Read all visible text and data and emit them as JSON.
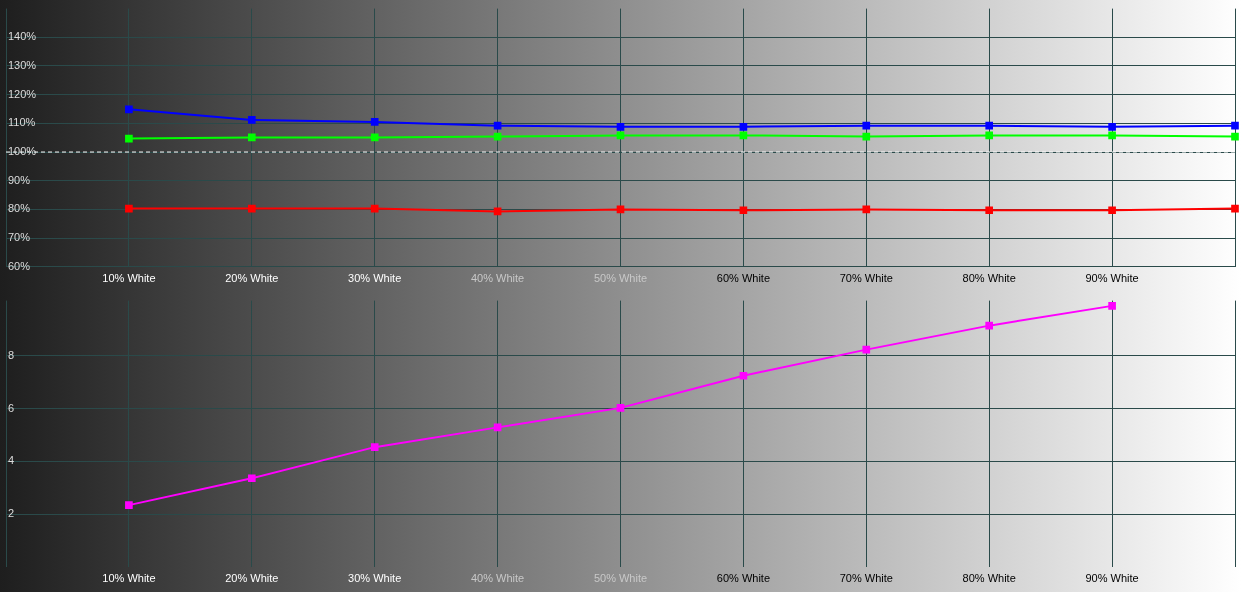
{
  "chart_data": [
    {
      "type": "line",
      "categories": [
        null,
        "10% White",
        "20% White",
        "30% White",
        "40% White",
        "50% White",
        "60% White",
        "70% White",
        "80% White",
        "90% White",
        null
      ],
      "ylim": [
        60,
        150
      ],
      "yticks": [
        {
          "value": 60,
          "label": "60%"
        },
        {
          "value": 70,
          "label": "70%"
        },
        {
          "value": 80,
          "label": "80%"
        },
        {
          "value": 90,
          "label": "90%"
        },
        {
          "value": 100,
          "label": "100%"
        },
        {
          "value": 110,
          "label": "110%"
        },
        {
          "value": 120,
          "label": "120%"
        },
        {
          "value": 130,
          "label": "130%"
        },
        {
          "value": 140,
          "label": "140%"
        }
      ],
      "grid": true,
      "legend": false,
      "marker": "square",
      "line_style": "solid",
      "ref_lines": [
        {
          "axis": "y",
          "value": 100,
          "color": "#ffffff",
          "line_style": "dashed"
        }
      ],
      "series": [
        {
          "color": "#ff0000",
          "values": [
            null,
            80.3,
            80.3,
            80.3,
            79.3,
            80.0,
            79.7,
            80.0,
            79.7,
            79.7,
            80.3
          ]
        },
        {
          "color": "#00ff00",
          "values": [
            null,
            104.7,
            105.1,
            105.1,
            105.4,
            105.8,
            105.8,
            105.4,
            105.8,
            105.8,
            105.4
          ]
        },
        {
          "color": "#0000ff",
          "values": [
            null,
            114.9,
            111.2,
            110.5,
            109.2,
            108.8,
            108.8,
            109.2,
            109.2,
            108.8,
            109.2
          ]
        }
      ]
    },
    {
      "type": "line",
      "categories": [
        null,
        "10% White",
        "20% White",
        "30% White",
        "40% White",
        "50% White",
        "60% White",
        "70% White",
        "80% White",
        "90% White",
        null
      ],
      "ylim": [
        0,
        10.1
      ],
      "yticks": [
        2,
        4,
        6,
        8
      ],
      "grid": true,
      "legend": false,
      "marker": "square",
      "line_style": "solid",
      "series": [
        {
          "color": "#ff00ff",
          "values": [
            null,
            2.34,
            3.36,
            4.54,
            5.29,
            6.03,
            7.25,
            8.24,
            9.15,
            9.9,
            null
          ]
        }
      ]
    }
  ]
}
